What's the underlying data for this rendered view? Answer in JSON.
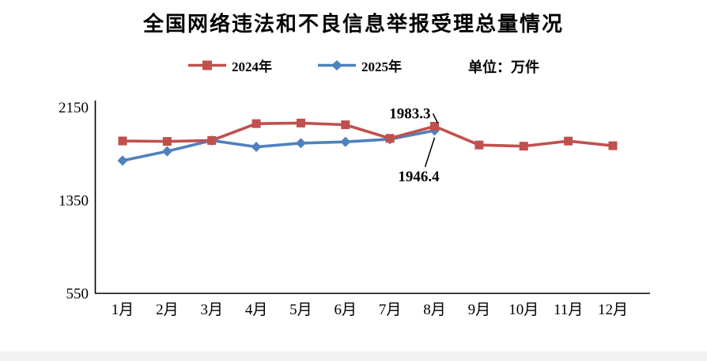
{
  "unit_label": "单位：万件",
  "chart_data": {
    "type": "line",
    "title": "全国网络违法和不良信息举报受理总量情况",
    "categories": [
      "1月",
      "2月",
      "3月",
      "4月",
      "5月",
      "6月",
      "7月",
      "8月",
      "9月",
      "10月",
      "11月",
      "12月"
    ],
    "series": [
      {
        "name": "2024年",
        "color": "#c0504d",
        "marker": "square",
        "values": [
          1857,
          1853,
          1861,
          2006,
          2011,
          1996,
          1879,
          1983.3,
          1822,
          1812,
          1856,
          1816
        ]
      },
      {
        "name": "2025年",
        "color": "#4f81bd",
        "marker": "diamond",
        "values": [
          1688,
          1768,
          1861,
          1806,
          1838,
          1849,
          1872,
          1946.4
        ]
      }
    ],
    "yticks": [
      550,
      1350,
      2150
    ],
    "ylim": [
      550,
      2150
    ],
    "xlabel": "",
    "ylabel": "",
    "grid": false,
    "legend_position": "top",
    "annotations": [
      {
        "text": "1983.3",
        "series_index": 0,
        "category_index": 7,
        "placement": "above"
      },
      {
        "text": "1946.4",
        "series_index": 1,
        "category_index": 7,
        "placement": "below"
      }
    ]
  }
}
